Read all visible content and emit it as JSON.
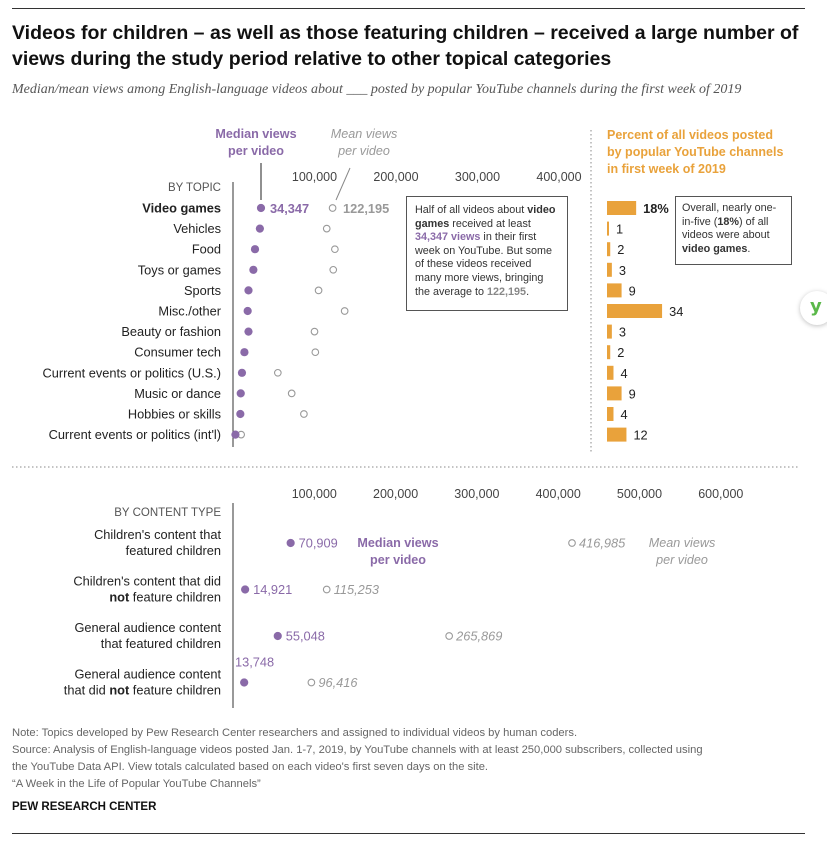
{
  "title": "Videos for children – as well as those featuring children – received a large number of views during the study period relative to other topical categories",
  "subtitle": "Median/mean views among English-language videos about ___ posted by popular YouTube channels during the first week of 2019",
  "colors": {
    "median": "#8a6aa8",
    "mean": "#999999",
    "bar": "#e9a23b",
    "axis": "#333333"
  },
  "legend_top": {
    "median": "Median views per video",
    "mean": "Mean views per video"
  },
  "bars_header": "Percent of all videos posted by popular YouTube channels in first week of 2019",
  "callout_topic": {
    "p1": "Half of all videos about ",
    "b1": "video games",
    "p2": " received at least ",
    "b2": "34,347 views",
    "p3": " in their first week on YouTube. But some of these videos received many more views, bringing the average to ",
    "b3": "122,195",
    "p4": "."
  },
  "callout_pct": {
    "p1": "Overall, nearly one-in-five (",
    "b1": "18%",
    "p2": ") of all videos were about ",
    "b2": "video games",
    "p3": "."
  },
  "panel_legend": {
    "median": "Median views per video",
    "mean": "Mean views per video"
  },
  "chart_data": [
    {
      "type": "scatter",
      "group_label": "BY TOPIC",
      "categories": [
        "Video games",
        "Vehicles",
        "Food",
        "Toys or games",
        "Sports",
        "Misc./other",
        "Beauty or fashion",
        "Consumer tech",
        "Current events or politics (U.S.)",
        "Music or dance",
        "Hobbies or skills",
        "Current events or politics (int'l)"
      ],
      "series": [
        {
          "name": "Median views per video",
          "values": [
            34347,
            33000,
            27000,
            25000,
            19000,
            18000,
            19000,
            14000,
            11000,
            9500,
            9000,
            3000
          ]
        },
        {
          "name": "Mean views per video",
          "values": [
            122195,
            115000,
            125000,
            123000,
            105000,
            137000,
            100000,
            101000,
            55000,
            72000,
            87000,
            10000
          ]
        }
      ],
      "value_labels": [
        "34,347",
        "122,195"
      ],
      "xticks": [
        "100,000",
        "200,000",
        "300,000",
        "400,000"
      ],
      "xlim": [
        0,
        450000
      ],
      "share_percent": [
        18,
        1,
        2,
        3,
        9,
        34,
        3,
        2,
        4,
        9,
        4,
        12
      ],
      "share_labels": [
        "18%",
        "1",
        "2",
        "3",
        "9",
        "34",
        "3",
        "2",
        "4",
        "9",
        "4",
        "12"
      ]
    },
    {
      "type": "scatter",
      "group_label": "BY CONTENT TYPE",
      "categories": [
        [
          "Children's content that",
          "featured children"
        ],
        [
          "Children's content that did",
          "*not* feature children"
        ],
        [
          "General audience content",
          "that featured children"
        ],
        [
          "General audience content",
          "that did *not* feature children"
        ]
      ],
      "series": [
        {
          "name": "Median views per video",
          "values": [
            70909,
            14921,
            55048,
            13748
          ]
        },
        {
          "name": "Mean views per video",
          "values": [
            416985,
            115253,
            265869,
            96416
          ]
        }
      ],
      "median_labels": [
        "70,909",
        "14,921",
        "55,048",
        "13,748"
      ],
      "mean_labels": [
        "416,985",
        "115,253",
        "265,869",
        "96,416"
      ],
      "xticks": [
        "100,000",
        "200,000",
        "300,000",
        "400,000",
        "500,000",
        "600,000"
      ],
      "xlim": [
        0,
        650000
      ]
    }
  ],
  "footer": {
    "note": "Note: Topics developed by Pew Research Center researchers and assigned to individual videos by human coders.",
    "source_1": "Source: Analysis of English-language videos posted Jan. 1-7, 2019, by YouTube channels with at least 250,000 subscribers, collected using",
    "source_2": "the YouTube Data API. View totals calculated based on each video's first seven days on the site.",
    "report": "“A Week in the Life of Popular YouTube Channels”",
    "org": "PEW RESEARCH CENTER"
  },
  "widget_icon": "y-logo-icon"
}
